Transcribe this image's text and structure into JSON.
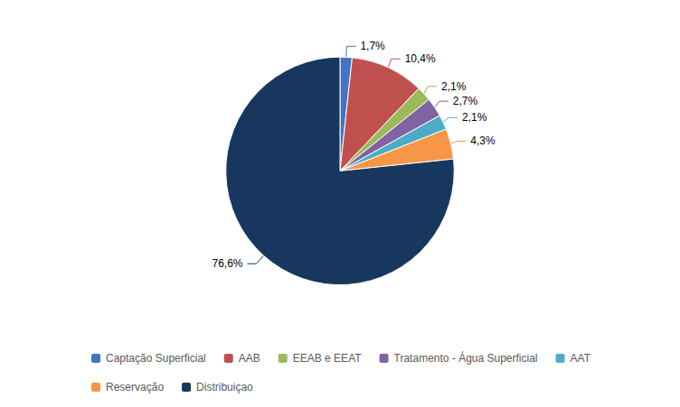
{
  "chart_data": {
    "type": "pie",
    "categories": [
      "Captação Superficial",
      "AAB",
      "EEAB e EEAT",
      "Tratamento - Água Superficial",
      "AAT",
      "Reservação",
      "Distribuiçao"
    ],
    "values": [
      1.7,
      10.4,
      2.1,
      2.7,
      2.1,
      4.3,
      76.6
    ],
    "value_labels": [
      "1,7%",
      "10,4%",
      "2,1%",
      "2,7%",
      "2,1%",
      "4,3%",
      "76,6%"
    ],
    "colors": [
      "#4472c4",
      "#c0504d",
      "#9bbb59",
      "#8064a2",
      "#4bacc6",
      "#f79646",
      "#17375e"
    ],
    "data_labels": true,
    "legend": "bottom"
  }
}
